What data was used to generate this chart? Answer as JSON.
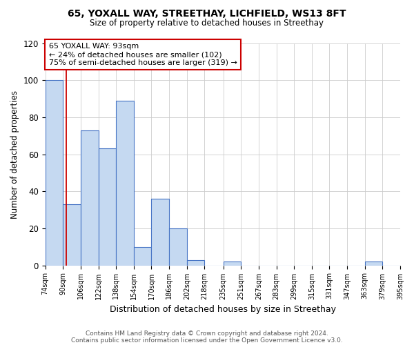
{
  "title": "65, YOXALL WAY, STREETHAY, LICHFIELD, WS13 8FT",
  "subtitle": "Size of property relative to detached houses in Streethay",
  "xlabel": "Distribution of detached houses by size in Streethay",
  "ylabel": "Number of detached properties",
  "footnote1": "Contains HM Land Registry data © Crown copyright and database right 2024.",
  "footnote2": "Contains public sector information licensed under the Open Government Licence v3.0.",
  "bin_edges": [
    74,
    90,
    106,
    122,
    138,
    154,
    170,
    186,
    202,
    218,
    235,
    251,
    267,
    283,
    299,
    315,
    331,
    347,
    363,
    379,
    395
  ],
  "bin_labels": [
    "74sqm",
    "90sqm",
    "106sqm",
    "122sqm",
    "138sqm",
    "154sqm",
    "170sqm",
    "186sqm",
    "202sqm",
    "218sqm",
    "235sqm",
    "251sqm",
    "267sqm",
    "283sqm",
    "299sqm",
    "315sqm",
    "331sqm",
    "347sqm",
    "363sqm",
    "379sqm",
    "395sqm"
  ],
  "counts": [
    100,
    33,
    73,
    63,
    89,
    10,
    36,
    20,
    3,
    0,
    2,
    0,
    0,
    0,
    0,
    0,
    0,
    0,
    2,
    0
  ],
  "bar_face_color": "#c5d9f1",
  "bar_edge_color": "#4472c4",
  "grid_color": "#cccccc",
  "background_color": "#ffffff",
  "property_line_x": 93,
  "property_line_color": "#cc0000",
  "annotation_line1": "65 YOXALL WAY: 93sqm",
  "annotation_line2": "← 24% of detached houses are smaller (102)",
  "annotation_line3": "75% of semi-detached houses are larger (319) →",
  "annotation_box_color": "#cc0000",
  "ylim": [
    0,
    120
  ],
  "yticks": [
    0,
    20,
    40,
    60,
    80,
    100,
    120
  ]
}
